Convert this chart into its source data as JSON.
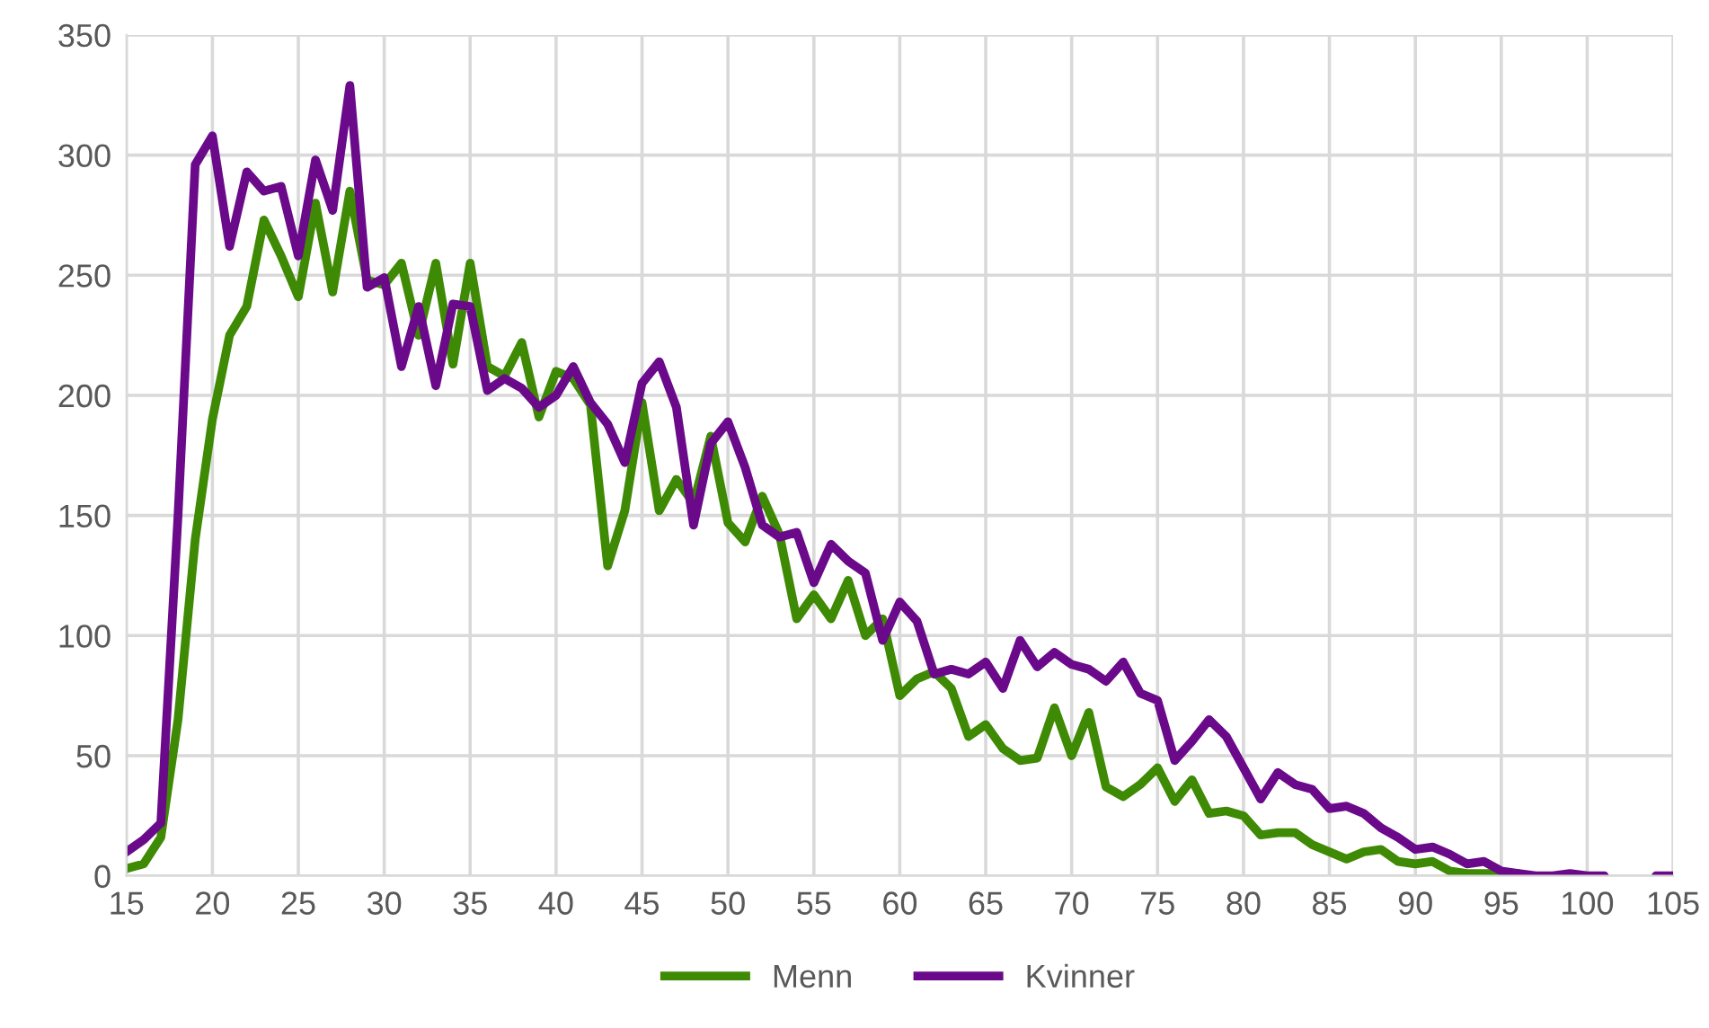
{
  "chart_data": {
    "type": "line",
    "x": [
      15,
      16,
      17,
      18,
      19,
      20,
      21,
      22,
      23,
      24,
      25,
      26,
      27,
      28,
      29,
      30,
      31,
      32,
      33,
      34,
      35,
      36,
      37,
      38,
      39,
      40,
      41,
      42,
      43,
      44,
      45,
      46,
      47,
      48,
      49,
      50,
      51,
      52,
      53,
      54,
      55,
      56,
      57,
      58,
      59,
      60,
      61,
      62,
      63,
      64,
      65,
      66,
      67,
      68,
      69,
      70,
      71,
      72,
      73,
      74,
      75,
      76,
      77,
      78,
      79,
      80,
      81,
      82,
      83,
      84,
      85,
      86,
      87,
      88,
      89,
      90,
      91,
      92,
      93,
      94,
      95,
      96,
      97,
      98,
      99,
      100,
      101,
      102,
      103,
      104,
      105
    ],
    "series": [
      {
        "name": "Menn",
        "color": "#3f8a04",
        "values": [
          3,
          5,
          16,
          65,
          140,
          190,
          225,
          237,
          273,
          258,
          241,
          280,
          243,
          285,
          248,
          246,
          255,
          225,
          255,
          213,
          255,
          212,
          208,
          222,
          191,
          210,
          207,
          196,
          129,
          152,
          197,
          152,
          165,
          155,
          183,
          147,
          139,
          158,
          142,
          107,
          117,
          107,
          123,
          100,
          107,
          75,
          82,
          85,
          78,
          58,
          63,
          53,
          48,
          49,
          70,
          50,
          68,
          37,
          33,
          38,
          45,
          31,
          40,
          26,
          27,
          25,
          17,
          18,
          18,
          13,
          10,
          7,
          10,
          11,
          6,
          5,
          6,
          2,
          1,
          1,
          1,
          1,
          null,
          null,
          null,
          null,
          null,
          null,
          null,
          null,
          null
        ]
      },
      {
        "name": "Kvinner",
        "color": "#6a0a8a",
        "values": [
          10,
          15,
          22,
          150,
          296,
          308,
          262,
          293,
          285,
          287,
          258,
          298,
          277,
          329,
          245,
          249,
          212,
          237,
          204,
          238,
          237,
          202,
          207,
          203,
          195,
          200,
          212,
          197,
          188,
          172,
          205,
          214,
          195,
          146,
          180,
          189,
          170,
          146,
          141,
          143,
          122,
          138,
          131,
          126,
          98,
          114,
          106,
          84,
          86,
          84,
          89,
          78,
          98,
          87,
          93,
          88,
          86,
          81,
          89,
          76,
          73,
          48,
          56,
          65,
          58,
          45,
          32,
          43,
          38,
          36,
          28,
          29,
          26,
          20,
          16,
          11,
          12,
          9,
          5,
          6,
          2,
          1,
          0,
          0,
          1,
          0,
          0,
          null,
          null,
          0,
          0
        ]
      }
    ],
    "xlim": [
      15,
      105
    ],
    "xticks": [
      15,
      20,
      25,
      30,
      35,
      40,
      45,
      50,
      55,
      60,
      65,
      70,
      75,
      80,
      85,
      90,
      95,
      100,
      105
    ],
    "ylim": [
      0,
      350
    ],
    "yticks": [
      0,
      50,
      100,
      150,
      200,
      250,
      300,
      350
    ],
    "grid": true,
    "legend": "bottom",
    "line_style": "solid",
    "marker": "none"
  }
}
